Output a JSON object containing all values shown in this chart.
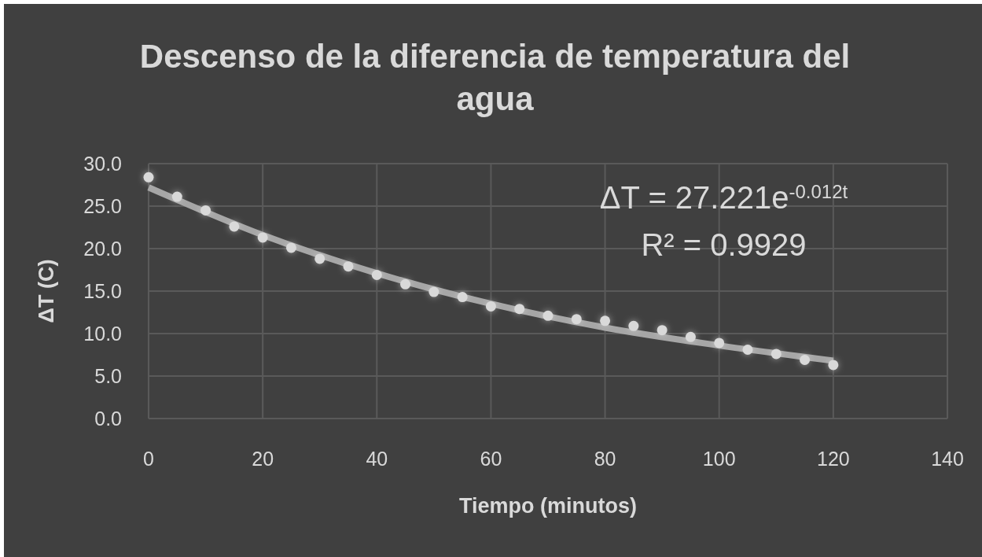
{
  "chart_data": {
    "type": "scatter",
    "title": "Descenso de la diferencia de temperatura del agua",
    "xlabel": "Tiempo (minutos)",
    "ylabel": "ΔT (C)",
    "annotations": [
      "ΔT = 27.221e$^{-0.012t}$",
      "R² = 0.9929"
    ],
    "xlim": [
      0,
      140
    ],
    "xticks": [
      0,
      20,
      40,
      60,
      80,
      100,
      120,
      140
    ],
    "ylim": [
      0,
      30
    ],
    "yticks": [
      {
        "value": 0,
        "label": "0.0"
      },
      {
        "value": 5,
        "label": "5.0"
      },
      {
        "value": 10,
        "label": "10.0"
      },
      {
        "value": 15,
        "label": "15.0"
      },
      {
        "value": 20,
        "label": "20.0"
      },
      {
        "value": 25,
        "label": "25.0"
      },
      {
        "value": 30,
        "label": "30.0"
      }
    ],
    "grid": true,
    "marker": "circle",
    "series": [
      {
        "color": "#d9d9d9",
        "x": [
          0,
          5,
          10,
          15,
          20,
          25,
          30,
          35,
          40,
          45,
          50,
          55,
          60,
          65,
          70,
          75,
          80,
          85,
          90,
          95,
          100,
          105,
          110,
          115,
          120
        ],
        "values": [
          28.4,
          26.1,
          24.5,
          22.6,
          21.3,
          20.1,
          18.8,
          17.9,
          16.9,
          15.8,
          14.9,
          14.3,
          13.2,
          12.9,
          12.1,
          11.7,
          11.5,
          10.9,
          10.4,
          9.6,
          8.9,
          8.1,
          7.6,
          6.9,
          6.3
        ]
      },
      {
        "type": "line",
        "color": "#a6a6a6",
        "marker": "none",
        "x": [
          0,
          20,
          40,
          60,
          80,
          100,
          120
        ],
        "values": [
          27.2,
          21.6,
          17.1,
          13.5,
          10.7,
          8.6,
          6.8
        ]
      }
    ]
  }
}
